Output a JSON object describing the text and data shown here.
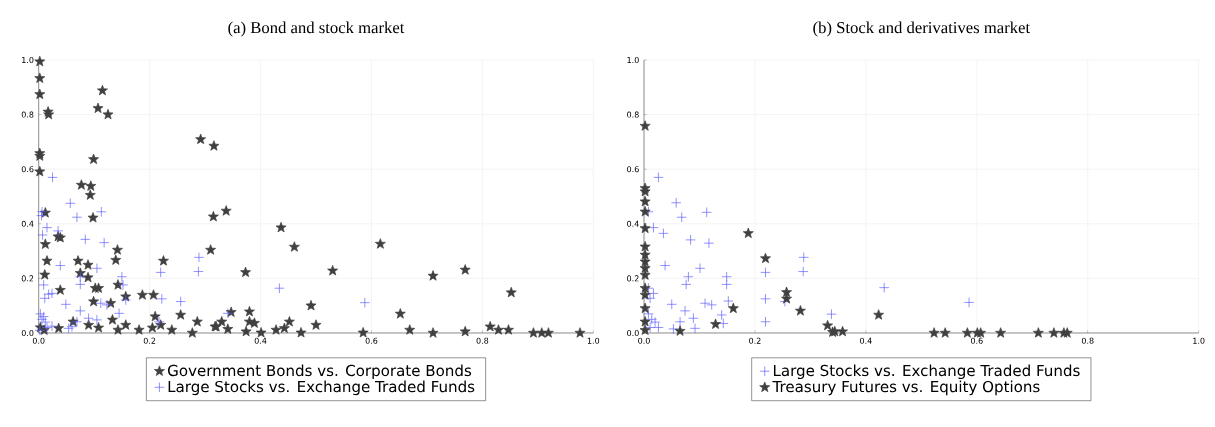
{
  "chart_data": [
    {
      "type": "scatter",
      "title": "(a) Bond and stock market",
      "grid": true,
      "legend": "bottom",
      "xlim": [
        0,
        1
      ],
      "ylim": [
        0,
        1
      ],
      "xticks": [
        {
          "value": 0,
          "label": "0.0"
        },
        {
          "value": 0.2,
          "label": "0.2"
        },
        {
          "value": 0.4,
          "label": "0.4"
        },
        {
          "value": 0.6,
          "label": "0.6"
        },
        {
          "value": 0.8,
          "label": "0.8"
        },
        {
          "value": 1,
          "label": "1.0"
        }
      ],
      "yticks": [
        {
          "value": 0,
          "label": "0.0"
        },
        {
          "value": 0.2,
          "label": "0.2"
        },
        {
          "value": 0.4,
          "label": "0.4"
        },
        {
          "value": 0.6,
          "label": "0.6"
        },
        {
          "value": 0.8,
          "label": "0.8"
        },
        {
          "value": 1,
          "label": "1.0"
        }
      ],
      "series": [
        {
          "name": "Government Bonds vs. Corporate Bonds",
          "color": "#404040",
          "marker": "star",
          "x": [
            0.115,
            0.107,
            0.125,
            0.017,
            0.018,
            0.099,
            0.077,
            0.094,
            0.093,
            0.098,
            0.012,
            0.035,
            0.039,
            0.012,
            0.142,
            0.015,
            0.071,
            0.089,
            0.139,
            0.225,
            0.075,
            0.089,
            0.011,
            0.143,
            0.039,
            0.102,
            0.108,
            0.099,
            0.13,
            0.157,
            0.187,
            0.207,
            0.256,
            0.21,
            0.133,
            0.062,
            0.09,
            0.108,
            0.157,
            0.181,
            0.205,
            0.22,
            0.24,
            0.277,
            0.286,
            0.318,
            0.33,
            0.143,
            0.036,
            0.003,
            0.01,
            0.002,
            0.002,
            0.002,
            0.002,
            0.002,
            0.002,
            0.292,
            0.316,
            0.315,
            0.338,
            0.31,
            0.437,
            0.461,
            0.373,
            0.53,
            0.616,
            0.711,
            0.769,
            0.852,
            0.491,
            0.5,
            0.652,
            0.669,
            0.711,
            0.769,
            0.814,
            0.829,
            0.847,
            0.892,
            0.907,
            0.919,
            0.976,
            0.347,
            0.38,
            0.38,
            0.389,
            0.341,
            0.32,
            0.428,
            0.443,
            0.452,
            0.473,
            0.585,
            0.401,
            0.374
          ],
          "values": [
            0.888,
            0.823,
            0.8,
            0.81,
            0.8,
            0.636,
            0.542,
            0.538,
            0.505,
            0.422,
            0.44,
            0.353,
            0.349,
            0.325,
            0.304,
            0.264,
            0.264,
            0.249,
            0.267,
            0.264,
            0.219,
            0.203,
            0.213,
            0.176,
            0.157,
            0.164,
            0.164,
            0.115,
            0.109,
            0.133,
            0.139,
            0.139,
            0.066,
            0.06,
            0.048,
            0.041,
            0.029,
            0.019,
            0.029,
            0.011,
            0.019,
            0.029,
            0.011,
            0,
            0.041,
            0.023,
            0.041,
            0.011,
            0.017,
            0.02,
            0.01,
            0.994,
            0.933,
            0.874,
            0.658,
            0.648,
            0.591,
            0.709,
            0.685,
            0.426,
            0.447,
            0.304,
            0.386,
            0.315,
            0.222,
            0.228,
            0.326,
            0.209,
            0.231,
            0.148,
            0.1,
            0.029,
            0.07,
            0.011,
            0,
            0.005,
            0.023,
            0.011,
            0.011,
            0,
            0,
            0,
            0,
            0.076,
            0.078,
            0.041,
            0.036,
            0.014,
            0.023,
            0.011,
            0.017,
            0.041,
            0.001,
            0.001,
            0.001,
            0.005
          ]
        },
        {
          "name": "Large Stocks vs. Exchange Traded Funds",
          "color": "#5a5aff",
          "marker": "cross",
          "x": [
            0.025,
            0.057,
            0.069,
            0.113,
            0.006,
            0.015,
            0.007,
            0.035,
            0.084,
            0.118,
            0.039,
            0.105,
            0.15,
            0.075,
            0.075,
            0.152,
            0.22,
            0.289,
            0.288,
            0.256,
            0.222,
            0.009,
            0.011,
            0.018,
            0.024,
            0.049,
            0.112,
            0.123,
            0.157,
            0.145,
            0.075,
            0.09,
            0.105,
            0.06,
            0.069,
            0.217,
            0.341,
            0.434,
            0.588,
            0.003,
            0.006,
            0.012,
            0.015,
            0.024,
            0.002,
            0.009,
            0.054,
            0.005
          ],
          "values": [
            0.57,
            0.475,
            0.424,
            0.444,
            0.444,
            0.386,
            0.359,
            0.374,
            0.343,
            0.331,
            0.247,
            0.237,
            0.206,
            0.206,
            0.178,
            0.176,
            0.222,
            0.277,
            0.225,
            0.115,
            0.125,
            0.176,
            0.127,
            0.142,
            0.145,
            0.105,
            0.109,
            0.103,
            0.121,
            0.072,
            0.081,
            0.054,
            0.048,
            0.023,
            0.041,
            0.041,
            0.072,
            0.164,
            0.111,
            0.07,
            0.05,
            0.04,
            0.02,
            0.025,
            0.01,
            0.06,
            0.017,
            0.43
          ]
        }
      ]
    },
    {
      "type": "scatter",
      "title": "(b) Stock and derivatives market",
      "grid": true,
      "legend": "bottom",
      "xlim": [
        0,
        1
      ],
      "ylim": [
        0,
        1
      ],
      "xticks": [
        {
          "value": 0,
          "label": "0.0"
        },
        {
          "value": 0.2,
          "label": "0.2"
        },
        {
          "value": 0.4,
          "label": "0.4"
        },
        {
          "value": 0.6,
          "label": "0.6"
        },
        {
          "value": 0.8,
          "label": "0.8"
        },
        {
          "value": 1,
          "label": "1.0"
        }
      ],
      "yticks": [
        {
          "value": 0,
          "label": "0.0"
        },
        {
          "value": 0.2,
          "label": "0.2"
        },
        {
          "value": 0.4,
          "label": "0.4"
        },
        {
          "value": 0.6,
          "label": "0.6"
        },
        {
          "value": 0.8,
          "label": "0.8"
        },
        {
          "value": 1,
          "label": "1.0"
        }
      ],
      "series": [
        {
          "name": "Large Stocks vs. Exchange Traded Funds",
          "color": "#5a5aff",
          "marker": "cross",
          "x": [
            0.026,
            0.058,
            0.068,
            0.113,
            0.008,
            0.017,
            0.035,
            0.084,
            0.117,
            0.038,
            0.101,
            0.08,
            0.076,
            0.149,
            0.149,
            0.219,
            0.288,
            0.287,
            0.219,
            0.254,
            0.152,
            0.11,
            0.122,
            0.05,
            0.074,
            0.089,
            0.14,
            0.143,
            0.219,
            0.338,
            0.092,
            0.053,
            0.065,
            0.008,
            0.017,
            0.011,
            0.008,
            0.014,
            0.02,
            0.011,
            0.026,
            0.433,
            0.586
          ],
          "values": [
            0.57,
            0.477,
            0.424,
            0.442,
            0.444,
            0.386,
            0.365,
            0.341,
            0.329,
            0.247,
            0.237,
            0.206,
            0.178,
            0.206,
            0.178,
            0.222,
            0.277,
            0.225,
            0.125,
            0.115,
            0.117,
            0.109,
            0.103,
            0.105,
            0.081,
            0.054,
            0.066,
            0.035,
            0.041,
            0.069,
            0.017,
            0.015,
            0.041,
            0.164,
            0.145,
            0.127,
            0.07,
            0.05,
            0.04,
            0.02,
            0.02,
            0.166,
            0.112
          ]
        },
        {
          "name": "Treasury Futures vs. Equity Options",
          "color": "#404040",
          "marker": "star",
          "x": [
            0.002,
            0.002,
            0.002,
            0.002,
            0.002,
            0.002,
            0.002,
            0.002,
            0.002,
            0.002,
            0.002,
            0.002,
            0.002,
            0.002,
            0.002,
            0.002,
            0.188,
            0.219,
            0.257,
            0.257,
            0.282,
            0.161,
            0.129,
            0.065,
            0.331,
            0.34,
            0.423,
            0.344,
            0.358,
            0.523,
            0.543,
            0.583,
            0.601,
            0.607,
            0.643,
            0.711,
            0.739,
            0.757,
            0.763
          ],
          "values": [
            0.758,
            0.53,
            0.518,
            0.481,
            0.444,
            0.383,
            0.316,
            0.286,
            0.261,
            0.237,
            0.212,
            0.164,
            0.139,
            0.09,
            0.041,
            0.01,
            0.365,
            0.273,
            0.149,
            0.125,
            0.081,
            0.09,
            0.032,
            0.007,
            0.027,
            0.003,
            0.066,
            0.005,
            0.005,
            0,
            0,
            0,
            0,
            0,
            0,
            0,
            0,
            0,
            0
          ]
        }
      ]
    }
  ]
}
